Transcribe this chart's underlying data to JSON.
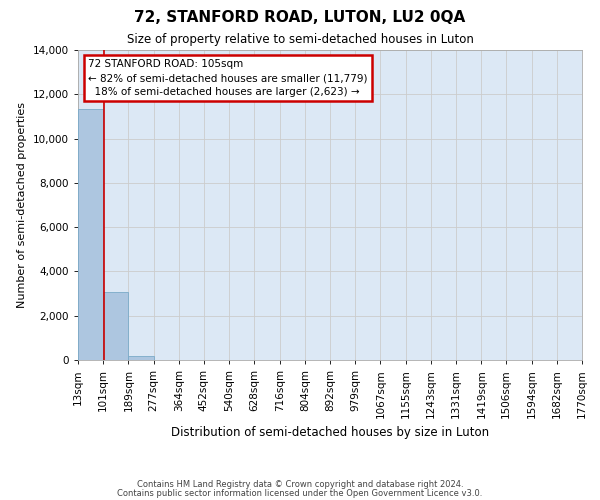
{
  "title": "72, STANFORD ROAD, LUTON, LU2 0QA",
  "subtitle": "Size of property relative to semi-detached houses in Luton",
  "xlabel": "Distribution of semi-detached houses by size in Luton",
  "ylabel": "Number of semi-detached properties",
  "property_size": 105,
  "property_label": "72 STANFORD ROAD: 105sqm",
  "pct_smaller": 82,
  "count_smaller": 11779,
  "pct_larger": 18,
  "count_larger": 2623,
  "bin_edges": [
    13,
    101,
    189,
    277,
    364,
    452,
    540,
    628,
    716,
    804,
    892,
    979,
    1067,
    1155,
    1243,
    1331,
    1419,
    1506,
    1594,
    1682,
    1770
  ],
  "bin_labels": [
    "13sqm",
    "101sqm",
    "189sqm",
    "277sqm",
    "364sqm",
    "452sqm",
    "540sqm",
    "628sqm",
    "716sqm",
    "804sqm",
    "892sqm",
    "979sqm",
    "1067sqm",
    "1155sqm",
    "1243sqm",
    "1331sqm",
    "1419sqm",
    "1506sqm",
    "1594sqm",
    "1682sqm",
    "1770sqm"
  ],
  "bar_heights": [
    11350,
    3050,
    175,
    0,
    0,
    0,
    0,
    0,
    0,
    0,
    0,
    0,
    0,
    0,
    0,
    0,
    0,
    0,
    0,
    0
  ],
  "bar_color": "#adc6e0",
  "bar_edge_color": "#7aaac8",
  "grid_color": "#cccccc",
  "bg_color": "#dce8f5",
  "annotation_box_color": "#cc0000",
  "property_line_color": "#cc0000",
  "ylim": [
    0,
    14000
  ],
  "yticks": [
    0,
    2000,
    4000,
    6000,
    8000,
    10000,
    12000,
    14000
  ],
  "footnote1": "Contains HM Land Registry data © Crown copyright and database right 2024.",
  "footnote2": "Contains public sector information licensed under the Open Government Licence v3.0."
}
